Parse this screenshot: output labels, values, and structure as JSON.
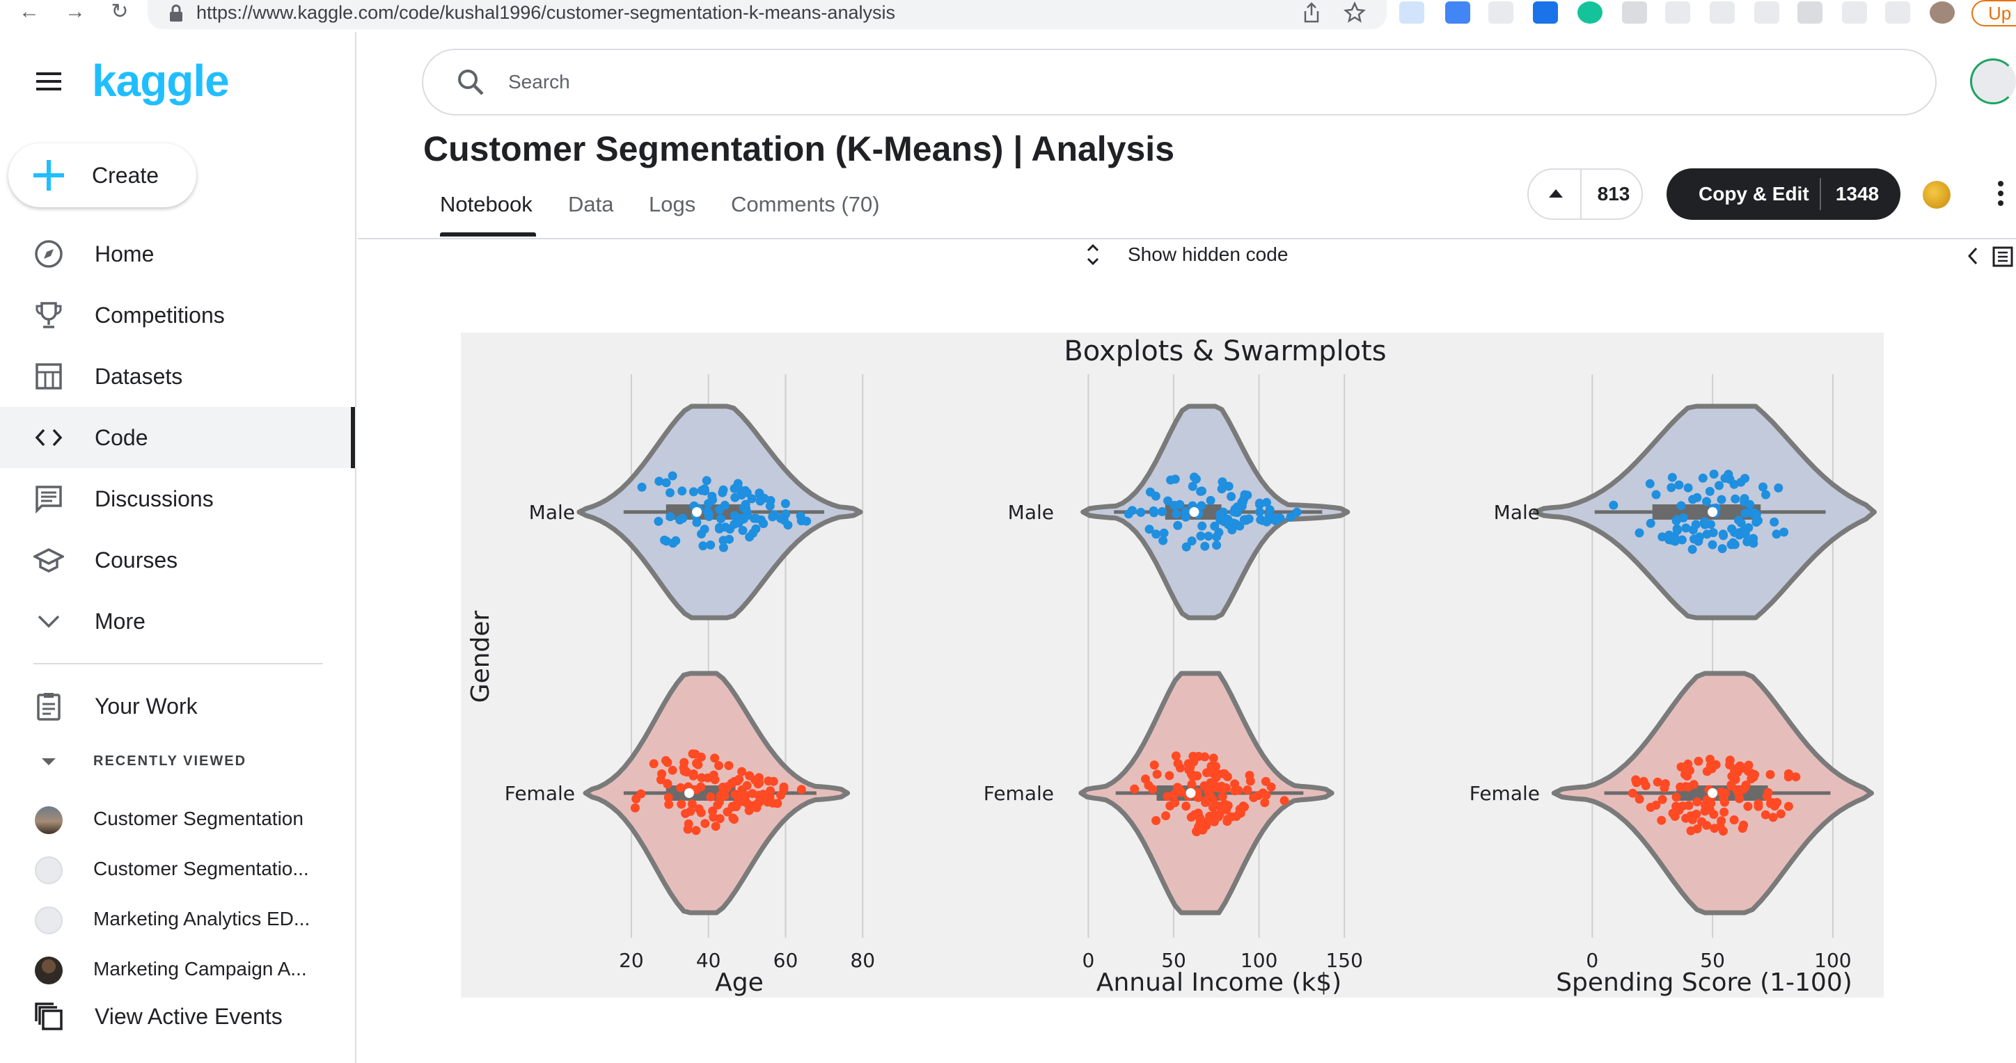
{
  "browser": {
    "url": "https://www.kaggle.com/code/kushal1996/customer-segmentation-k-means-analysis",
    "profile_label": "Up"
  },
  "sidebar": {
    "logo": "kaggle",
    "create_label": "Create",
    "items": [
      {
        "label": "Home",
        "icon": "compass-icon"
      },
      {
        "label": "Competitions",
        "icon": "trophy-icon"
      },
      {
        "label": "Datasets",
        "icon": "table-icon"
      },
      {
        "label": "Code",
        "icon": "code-icon",
        "active": true
      },
      {
        "label": "Discussions",
        "icon": "comment-icon"
      },
      {
        "label": "Courses",
        "icon": "school-icon"
      },
      {
        "label": "More",
        "icon": "chevron-down-icon"
      }
    ],
    "your_work": "Your Work",
    "recently_viewed_heading": "RECENTLY VIEWED",
    "recent": [
      {
        "label": "Customer Segmentation"
      },
      {
        "label": "Customer Segmentatio..."
      },
      {
        "label": "Marketing Analytics ED..."
      },
      {
        "label": "Marketing Campaign A..."
      }
    ],
    "view_active_events": "View Active Events"
  },
  "header": {
    "search_placeholder": "Search",
    "title": "Customer Segmentation (K-Means) | Analysis",
    "tabs": [
      "Notebook",
      "Data",
      "Logs",
      "Comments (70)"
    ],
    "active_tab": "Notebook",
    "vote_count": "813",
    "copy_edit_label": "Copy & Edit",
    "copy_edit_count": "1348"
  },
  "notebook": {
    "show_hidden_code": "Show hidden code"
  },
  "colors": {
    "kaggle_blue": "#20beff",
    "male_point": "#1f8fe0",
    "female_point": "#ff4a24",
    "male_violin": "#c3cadb",
    "female_violin": "#e5bebb"
  },
  "chart_data": {
    "type": "violin+swarm",
    "title": "Boxplots & Swarmplots",
    "ylabel": "Gender",
    "categories": [
      "Male",
      "Female"
    ],
    "panels": [
      {
        "xlabel": "Age",
        "xticks": [
          20,
          40,
          60,
          80
        ],
        "xlim": [
          9,
          87
        ],
        "series": [
          {
            "name": "Male",
            "min": 18,
            "q1": 29,
            "median": 37,
            "q3": 50,
            "max": 70
          },
          {
            "name": "Female",
            "min": 18,
            "q1": 29,
            "median": 35,
            "q3": 47,
            "max": 68
          }
        ]
      },
      {
        "xlabel": "Annual Income (k$)",
        "xticks": [
          0,
          50,
          100,
          150
        ],
        "xlim": [
          -12,
          165
        ],
        "series": [
          {
            "name": "Male",
            "min": 15,
            "q1": 45,
            "median": 62,
            "q3": 78,
            "max": 137
          },
          {
            "name": "Female",
            "min": 16,
            "q1": 40,
            "median": 60,
            "q3": 77,
            "max": 126
          }
        ]
      },
      {
        "xlabel": "Spending Score (1-100)",
        "xticks": [
          0,
          50,
          100
        ],
        "xlim": [
          -16,
          109
        ],
        "series": [
          {
            "name": "Male",
            "min": 1,
            "q1": 25,
            "median": 50,
            "q3": 70,
            "max": 97
          },
          {
            "name": "Female",
            "min": 5,
            "q1": 35,
            "median": 50,
            "q3": 73,
            "max": 99
          }
        ]
      }
    ]
  }
}
